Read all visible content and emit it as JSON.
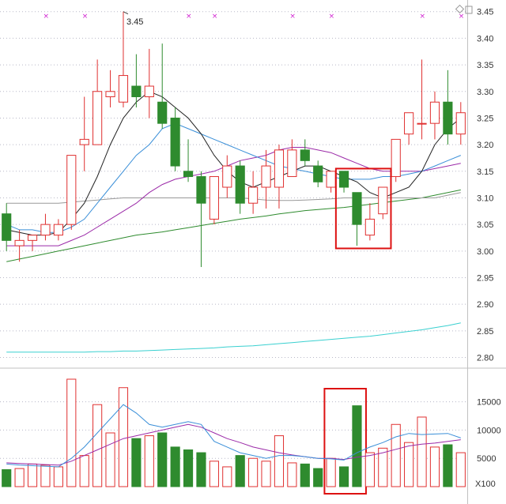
{
  "chart_data": [
    {
      "type": "candlestick",
      "title": "",
      "ylim": [
        2.78,
        3.46
      ],
      "grid": true,
      "yticks": [
        "3.45",
        "3.40",
        "3.35",
        "3.30",
        "3.25",
        "3.20",
        "3.15",
        "3.10",
        "3.05",
        "3.00",
        "2.95",
        "2.90",
        "2.85",
        "2.80"
      ],
      "annotation": "3.45",
      "markers": [
        "×",
        "×",
        "×",
        "×",
        "×",
        "×",
        "×",
        "×",
        "×"
      ],
      "colors": {
        "up": "#e03030",
        "down": "#2e8b2e",
        "ma5": "#222222",
        "ma10": "#3a8fd8",
        "ma20": "#9b2aa8",
        "ma60": "#999999",
        "ma120": "#2e8b2e",
        "ma250": "#3ad0d0"
      },
      "candles": [
        {
          "o": 3.07,
          "h": 3.09,
          "l": 3.0,
          "c": 3.02
        },
        {
          "o": 3.01,
          "h": 3.04,
          "l": 2.98,
          "c": 3.02
        },
        {
          "o": 3.02,
          "h": 3.03,
          "l": 3.0,
          "c": 3.03
        },
        {
          "o": 3.03,
          "h": 3.07,
          "l": 3.02,
          "c": 3.05
        },
        {
          "o": 3.03,
          "h": 3.06,
          "l": 3.02,
          "c": 3.05
        },
        {
          "o": 3.05,
          "h": 3.18,
          "l": 3.04,
          "c": 3.18
        },
        {
          "o": 3.2,
          "h": 3.29,
          "l": 3.15,
          "c": 3.21
        },
        {
          "o": 3.2,
          "h": 3.36,
          "l": 3.2,
          "c": 3.3
        },
        {
          "o": 3.29,
          "h": 3.34,
          "l": 3.27,
          "c": 3.3
        },
        {
          "o": 3.28,
          "h": 3.45,
          "l": 3.27,
          "c": 3.33
        },
        {
          "o": 3.31,
          "h": 3.37,
          "l": 3.27,
          "c": 3.29
        },
        {
          "o": 3.29,
          "h": 3.38,
          "l": 3.25,
          "c": 3.31
        },
        {
          "o": 3.28,
          "h": 3.39,
          "l": 3.23,
          "c": 3.24
        },
        {
          "o": 3.25,
          "h": 3.27,
          "l": 3.15,
          "c": 3.16
        },
        {
          "o": 3.15,
          "h": 3.21,
          "l": 3.13,
          "c": 3.14
        },
        {
          "o": 3.14,
          "h": 3.15,
          "l": 2.97,
          "c": 3.09
        },
        {
          "o": 3.06,
          "h": 3.14,
          "l": 3.05,
          "c": 3.14
        },
        {
          "o": 3.12,
          "h": 3.18,
          "l": 3.1,
          "c": 3.16
        },
        {
          "o": 3.16,
          "h": 3.17,
          "l": 3.07,
          "c": 3.09
        },
        {
          "o": 3.09,
          "h": 3.15,
          "l": 3.07,
          "c": 3.12
        },
        {
          "o": 3.12,
          "h": 3.19,
          "l": 3.08,
          "c": 3.16
        },
        {
          "o": 3.12,
          "h": 3.2,
          "l": 3.08,
          "c": 3.19
        },
        {
          "o": 3.14,
          "h": 3.21,
          "l": 3.14,
          "c": 3.19
        },
        {
          "o": 3.19,
          "h": 3.21,
          "l": 3.16,
          "c": 3.17
        },
        {
          "o": 3.16,
          "h": 3.17,
          "l": 3.12,
          "c": 3.13
        },
        {
          "o": 3.12,
          "h": 3.15,
          "l": 3.11,
          "c": 3.15
        },
        {
          "o": 3.15,
          "h": 3.15,
          "l": 3.11,
          "c": 3.12
        },
        {
          "o": 3.11,
          "h": 3.11,
          "l": 3.01,
          "c": 3.05
        },
        {
          "o": 3.03,
          "h": 3.09,
          "l": 3.02,
          "c": 3.06
        },
        {
          "o": 3.07,
          "h": 3.12,
          "l": 3.06,
          "c": 3.12
        },
        {
          "o": 3.14,
          "h": 3.21,
          "l": 3.13,
          "c": 3.21
        },
        {
          "o": 3.22,
          "h": 3.26,
          "l": 3.2,
          "c": 3.26
        },
        {
          "o": 3.24,
          "h": 3.36,
          "l": 3.21,
          "c": 3.24
        },
        {
          "o": 3.24,
          "h": 3.3,
          "l": 3.21,
          "c": 3.28
        },
        {
          "o": 3.28,
          "h": 3.34,
          "l": 3.2,
          "c": 3.22
        },
        {
          "o": 3.22,
          "h": 3.28,
          "l": 3.2,
          "c": 3.26
        }
      ],
      "ma5": [
        3.04,
        3.035,
        3.03,
        3.03,
        3.035,
        3.06,
        3.09,
        3.14,
        3.2,
        3.25,
        3.28,
        3.3,
        3.29,
        3.27,
        3.25,
        3.22,
        3.18,
        3.15,
        3.13,
        3.12,
        3.13,
        3.14,
        3.15,
        3.16,
        3.16,
        3.15,
        3.14,
        3.13,
        3.11,
        3.1,
        3.11,
        3.12,
        3.15,
        3.2,
        3.23,
        3.25
      ],
      "ma10": [
        3.05,
        3.04,
        3.04,
        3.035,
        3.035,
        3.045,
        3.06,
        3.09,
        3.12,
        3.15,
        3.18,
        3.2,
        3.23,
        3.24,
        3.23,
        3.22,
        3.21,
        3.2,
        3.19,
        3.18,
        3.17,
        3.16,
        3.155,
        3.15,
        3.145,
        3.14,
        3.135,
        3.135,
        3.135,
        3.14,
        3.14,
        3.145,
        3.15,
        3.16,
        3.17,
        3.18
      ],
      "ma20": [
        3.01,
        3.01,
        3.01,
        3.01,
        3.01,
        3.02,
        3.03,
        3.045,
        3.06,
        3.075,
        3.09,
        3.11,
        3.125,
        3.135,
        3.14,
        3.145,
        3.15,
        3.16,
        3.17,
        3.175,
        3.18,
        3.19,
        3.195,
        3.195,
        3.19,
        3.185,
        3.175,
        3.165,
        3.155,
        3.15,
        3.15,
        3.15,
        3.15,
        3.155,
        3.16,
        3.165
      ],
      "ma60": [
        3.09,
        3.09,
        3.09,
        3.09,
        3.09,
        3.092,
        3.094,
        3.096,
        3.098,
        3.1,
        3.1,
        3.1,
        3.1,
        3.1,
        3.1,
        3.1,
        3.1,
        3.1,
        3.1,
        3.098,
        3.096,
        3.095,
        3.095,
        3.096,
        3.097,
        3.098,
        3.1,
        3.1,
        3.1,
        3.1,
        3.1,
        3.1,
        3.1,
        3.1,
        3.105,
        3.11
      ],
      "ma120": [
        2.98,
        2.985,
        2.99,
        2.995,
        3.0,
        3.005,
        3.01,
        3.015,
        3.02,
        3.025,
        3.03,
        3.033,
        3.036,
        3.04,
        3.044,
        3.048,
        3.052,
        3.056,
        3.06,
        3.063,
        3.066,
        3.07,
        3.073,
        3.076,
        3.078,
        3.08,
        3.082,
        3.085,
        3.088,
        3.091,
        3.094,
        3.097,
        3.1,
        3.105,
        3.11,
        3.115
      ],
      "ma250": [
        2.81,
        2.81,
        2.81,
        2.81,
        2.81,
        2.81,
        2.81,
        2.811,
        2.811,
        2.812,
        2.812,
        2.813,
        2.814,
        2.815,
        2.816,
        2.817,
        2.818,
        2.82,
        2.821,
        2.822,
        2.824,
        2.826,
        2.828,
        2.83,
        2.832,
        2.834,
        2.836,
        2.838,
        2.84,
        2.843,
        2.846,
        2.849,
        2.852,
        2.856,
        2.86,
        2.865
      ],
      "highlight_range": [
        26,
        29
      ]
    },
    {
      "type": "bar",
      "title": "",
      "unit": "X100",
      "ylim": [
        0,
        19000
      ],
      "yticks": [
        "15000",
        "10000",
        "5000"
      ],
      "values": [
        3000,
        3200,
        4000,
        3800,
        3500,
        19000,
        5500,
        14500,
        9500,
        17500,
        8500,
        9000,
        9500,
        7000,
        6500,
        6000,
        4500,
        3500,
        5500,
        5000,
        4500,
        9000,
        4200,
        4000,
        3200,
        5000,
        3500,
        14300,
        6000,
        6800,
        11000,
        7800,
        12300,
        7000,
        7400,
        6000
      ],
      "ma5": [
        4000,
        3800,
        3700,
        3600,
        3500,
        5000,
        7000,
        9500,
        12000,
        14500,
        13000,
        11000,
        10500,
        11000,
        11500,
        11000,
        8000,
        7000,
        6000,
        5500,
        5000,
        5500,
        5500,
        5300,
        5000,
        4900,
        4700,
        6000,
        7000,
        7800,
        8800,
        9400,
        9200,
        9300,
        9400,
        8600
      ],
      "ma10": [
        4200,
        4100,
        4000,
        3900,
        3800,
        4500,
        5500,
        6500,
        7500,
        8500,
        9000,
        9500,
        10000,
        10500,
        11000,
        10500,
        9500,
        8500,
        7800,
        7000,
        6500,
        6000,
        5600,
        5300,
        5000,
        5000,
        4800,
        5200,
        5500,
        6000,
        6600,
        7200,
        7500,
        7700,
        8000,
        8300
      ]
    }
  ]
}
